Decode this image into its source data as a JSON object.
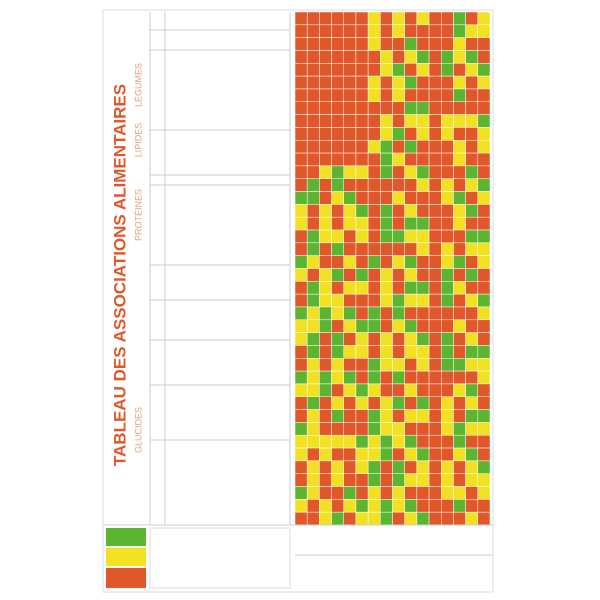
{
  "header": {
    "title": "TABLEAU DES ASSOCIATIONS ALIMENTAIRES"
  },
  "groups": [
    {
      "label": "GLUCIDES"
    },
    {
      "label": "PROTÉINES"
    },
    {
      "label": "LIPIDES"
    },
    {
      "label": "LÉGUMES"
    }
  ]
}
